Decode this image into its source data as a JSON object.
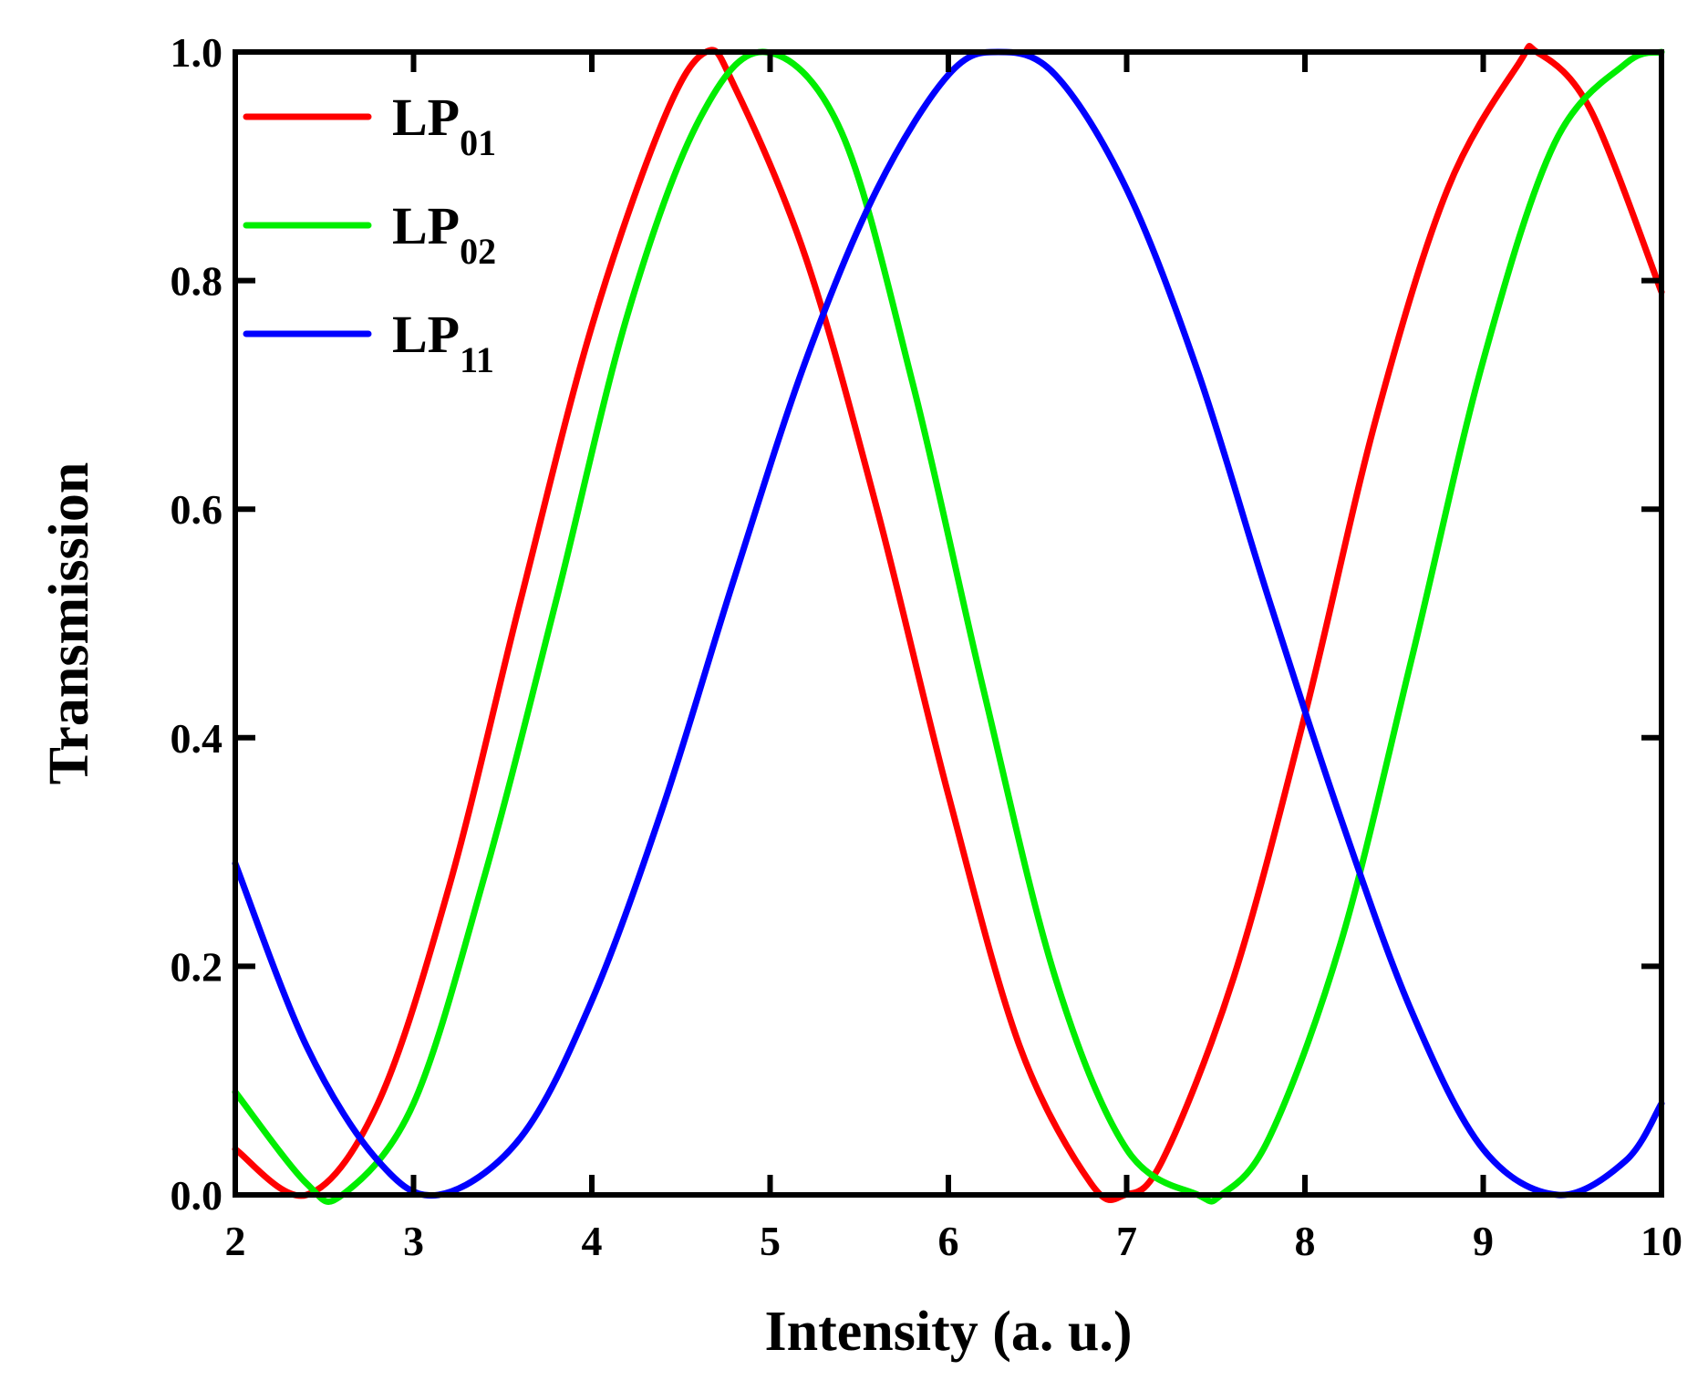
{
  "chart_data": {
    "type": "line",
    "xlabel": "Intensity (a. u.)",
    "ylabel": "Transmission",
    "xlim": [
      2,
      10
    ],
    "ylim": [
      0,
      1.0
    ],
    "xticks": [
      2,
      3,
      4,
      5,
      6,
      7,
      8,
      9,
      10
    ],
    "yticks": [
      0.0,
      0.2,
      0.4,
      0.6,
      0.8,
      1.0
    ],
    "xtick_labels": [
      "2",
      "3",
      "4",
      "5",
      "6",
      "7",
      "8",
      "9",
      "10"
    ],
    "ytick_labels": [
      "0.0",
      "0.2",
      "0.4",
      "0.6",
      "0.8",
      "1.0"
    ],
    "grid": false,
    "legend_position": "top-left",
    "series": [
      {
        "name": "LP01",
        "label_main": "LP",
        "label_sub": "01",
        "color": "#ff0000",
        "x": [
          2.0,
          2.4,
          2.8,
          3.2,
          3.6,
          4.0,
          4.4,
          4.64,
          4.8,
          5.2,
          5.6,
          6.0,
          6.4,
          6.8,
          6.99,
          7.2,
          7.6,
          8.0,
          8.4,
          8.8,
          9.2,
          9.3,
          9.6,
          10.0
        ],
        "y": [
          0.04,
          0.0,
          0.08,
          0.27,
          0.52,
          0.76,
          0.94,
          1.0,
          0.97,
          0.82,
          0.6,
          0.35,
          0.13,
          0.01,
          0.0,
          0.03,
          0.19,
          0.42,
          0.68,
          0.88,
          0.99,
          1.0,
          0.95,
          0.79
        ]
      },
      {
        "name": "LP02",
        "label_main": "LP",
        "label_sub": "02",
        "color": "#00ee00",
        "x": [
          2.0,
          2.4,
          2.6,
          3.0,
          3.4,
          3.8,
          4.2,
          4.6,
          4.97,
          5.4,
          5.8,
          6.2,
          6.6,
          7.0,
          7.4,
          7.53,
          7.8,
          8.2,
          8.6,
          9.0,
          9.4,
          9.8,
          10.0
        ],
        "y": [
          0.09,
          0.01,
          0.0,
          0.08,
          0.28,
          0.52,
          0.77,
          0.94,
          1.0,
          0.93,
          0.71,
          0.44,
          0.19,
          0.04,
          0.0,
          0.0,
          0.05,
          0.22,
          0.47,
          0.73,
          0.92,
          0.99,
          1.0
        ]
      },
      {
        "name": "LP11",
        "label_main": "LP",
        "label_sub": "11",
        "color": "#0000ff",
        "x": [
          2.0,
          2.4,
          2.8,
          3.14,
          3.6,
          4.0,
          4.4,
          4.8,
          5.2,
          5.6,
          6.0,
          6.28,
          6.6,
          7.0,
          7.4,
          7.8,
          8.2,
          8.6,
          9.0,
          9.42,
          9.8,
          10.0
        ],
        "y": [
          0.29,
          0.13,
          0.03,
          0.0,
          0.05,
          0.17,
          0.34,
          0.54,
          0.73,
          0.88,
          0.98,
          1.0,
          0.98,
          0.88,
          0.72,
          0.52,
          0.33,
          0.16,
          0.04,
          0.0,
          0.03,
          0.08
        ]
      }
    ]
  }
}
